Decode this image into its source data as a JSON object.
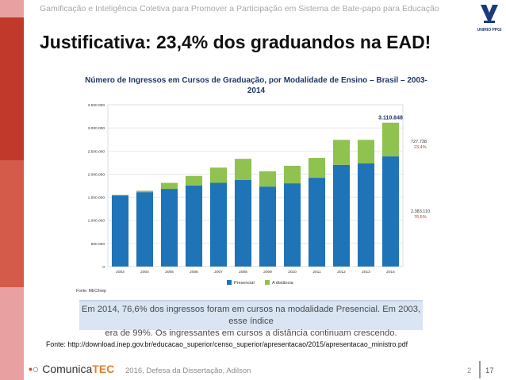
{
  "header": {
    "subtitle": "Gamificação e Inteligência Coletiva para Promover a Participação em Sistema de Bate-papo para Educação",
    "logo_text": "UNIRIO PPGI"
  },
  "title": "Justificativa: 23,4% dos graduandos na EAD!",
  "colors": {
    "presencial": "#1f73b7",
    "distancia": "#8fc24f",
    "accent_red": "#c0392b"
  },
  "chart_data": {
    "type": "bar",
    "stacked": true,
    "title": "Número de Ingressos em Cursos de Graduação, por Modalidade de Ensino – Brasil – 2003-2014",
    "categories": [
      "2003",
      "2004",
      "2005",
      "2006",
      "2007",
      "2008",
      "2009",
      "2010",
      "2011",
      "2012",
      "2013",
      "2014"
    ],
    "series": [
      {
        "name": "Presencial",
        "values": [
          1540000,
          1610000,
          1680000,
          1750000,
          1810000,
          1870000,
          1730000,
          1800000,
          1920000,
          2200000,
          2230000,
          2383110
        ]
      },
      {
        "name": "A distância",
        "values": [
          10000,
          30000,
          130000,
          210000,
          330000,
          460000,
          330000,
          380000,
          430000,
          540000,
          510000,
          727738
        ]
      }
    ],
    "yticks": [
      "0",
      "500.000",
      "1.000.000",
      "1.500.000",
      "2.000.000",
      "2.500.000",
      "3.000.000",
      "3.500.000"
    ],
    "ylim": [
      0,
      3500000
    ],
    "annotations": {
      "total_2014": "3.110.848",
      "distancia_2014": "727.738",
      "distancia_pct": "23,4%",
      "presencial_2014": "2.383.110",
      "presencial_pct": "76,6%"
    },
    "source_note": "Fonte: MEC/Inep",
    "legend_position": "bottom"
  },
  "callout": {
    "line1": "Em 2014, 76,6% dos ingressos foram em cursos na modalidade Presencial. Em 2003, esse índice",
    "line2": "era de 99%. Os ingressantes em cursos a distância continuam crescendo."
  },
  "source": "Fonte: http://download.inep.gov.br/educacao_superior/censo_superior/apresentacao/2015/apresentacao_ministro.pdf",
  "footer": {
    "brand_main": "Comunica",
    "brand_accent": "TEC",
    "text": "2016, Defesa da Dissertação, Adilson",
    "slide_number": "2",
    "page_total": "17"
  }
}
